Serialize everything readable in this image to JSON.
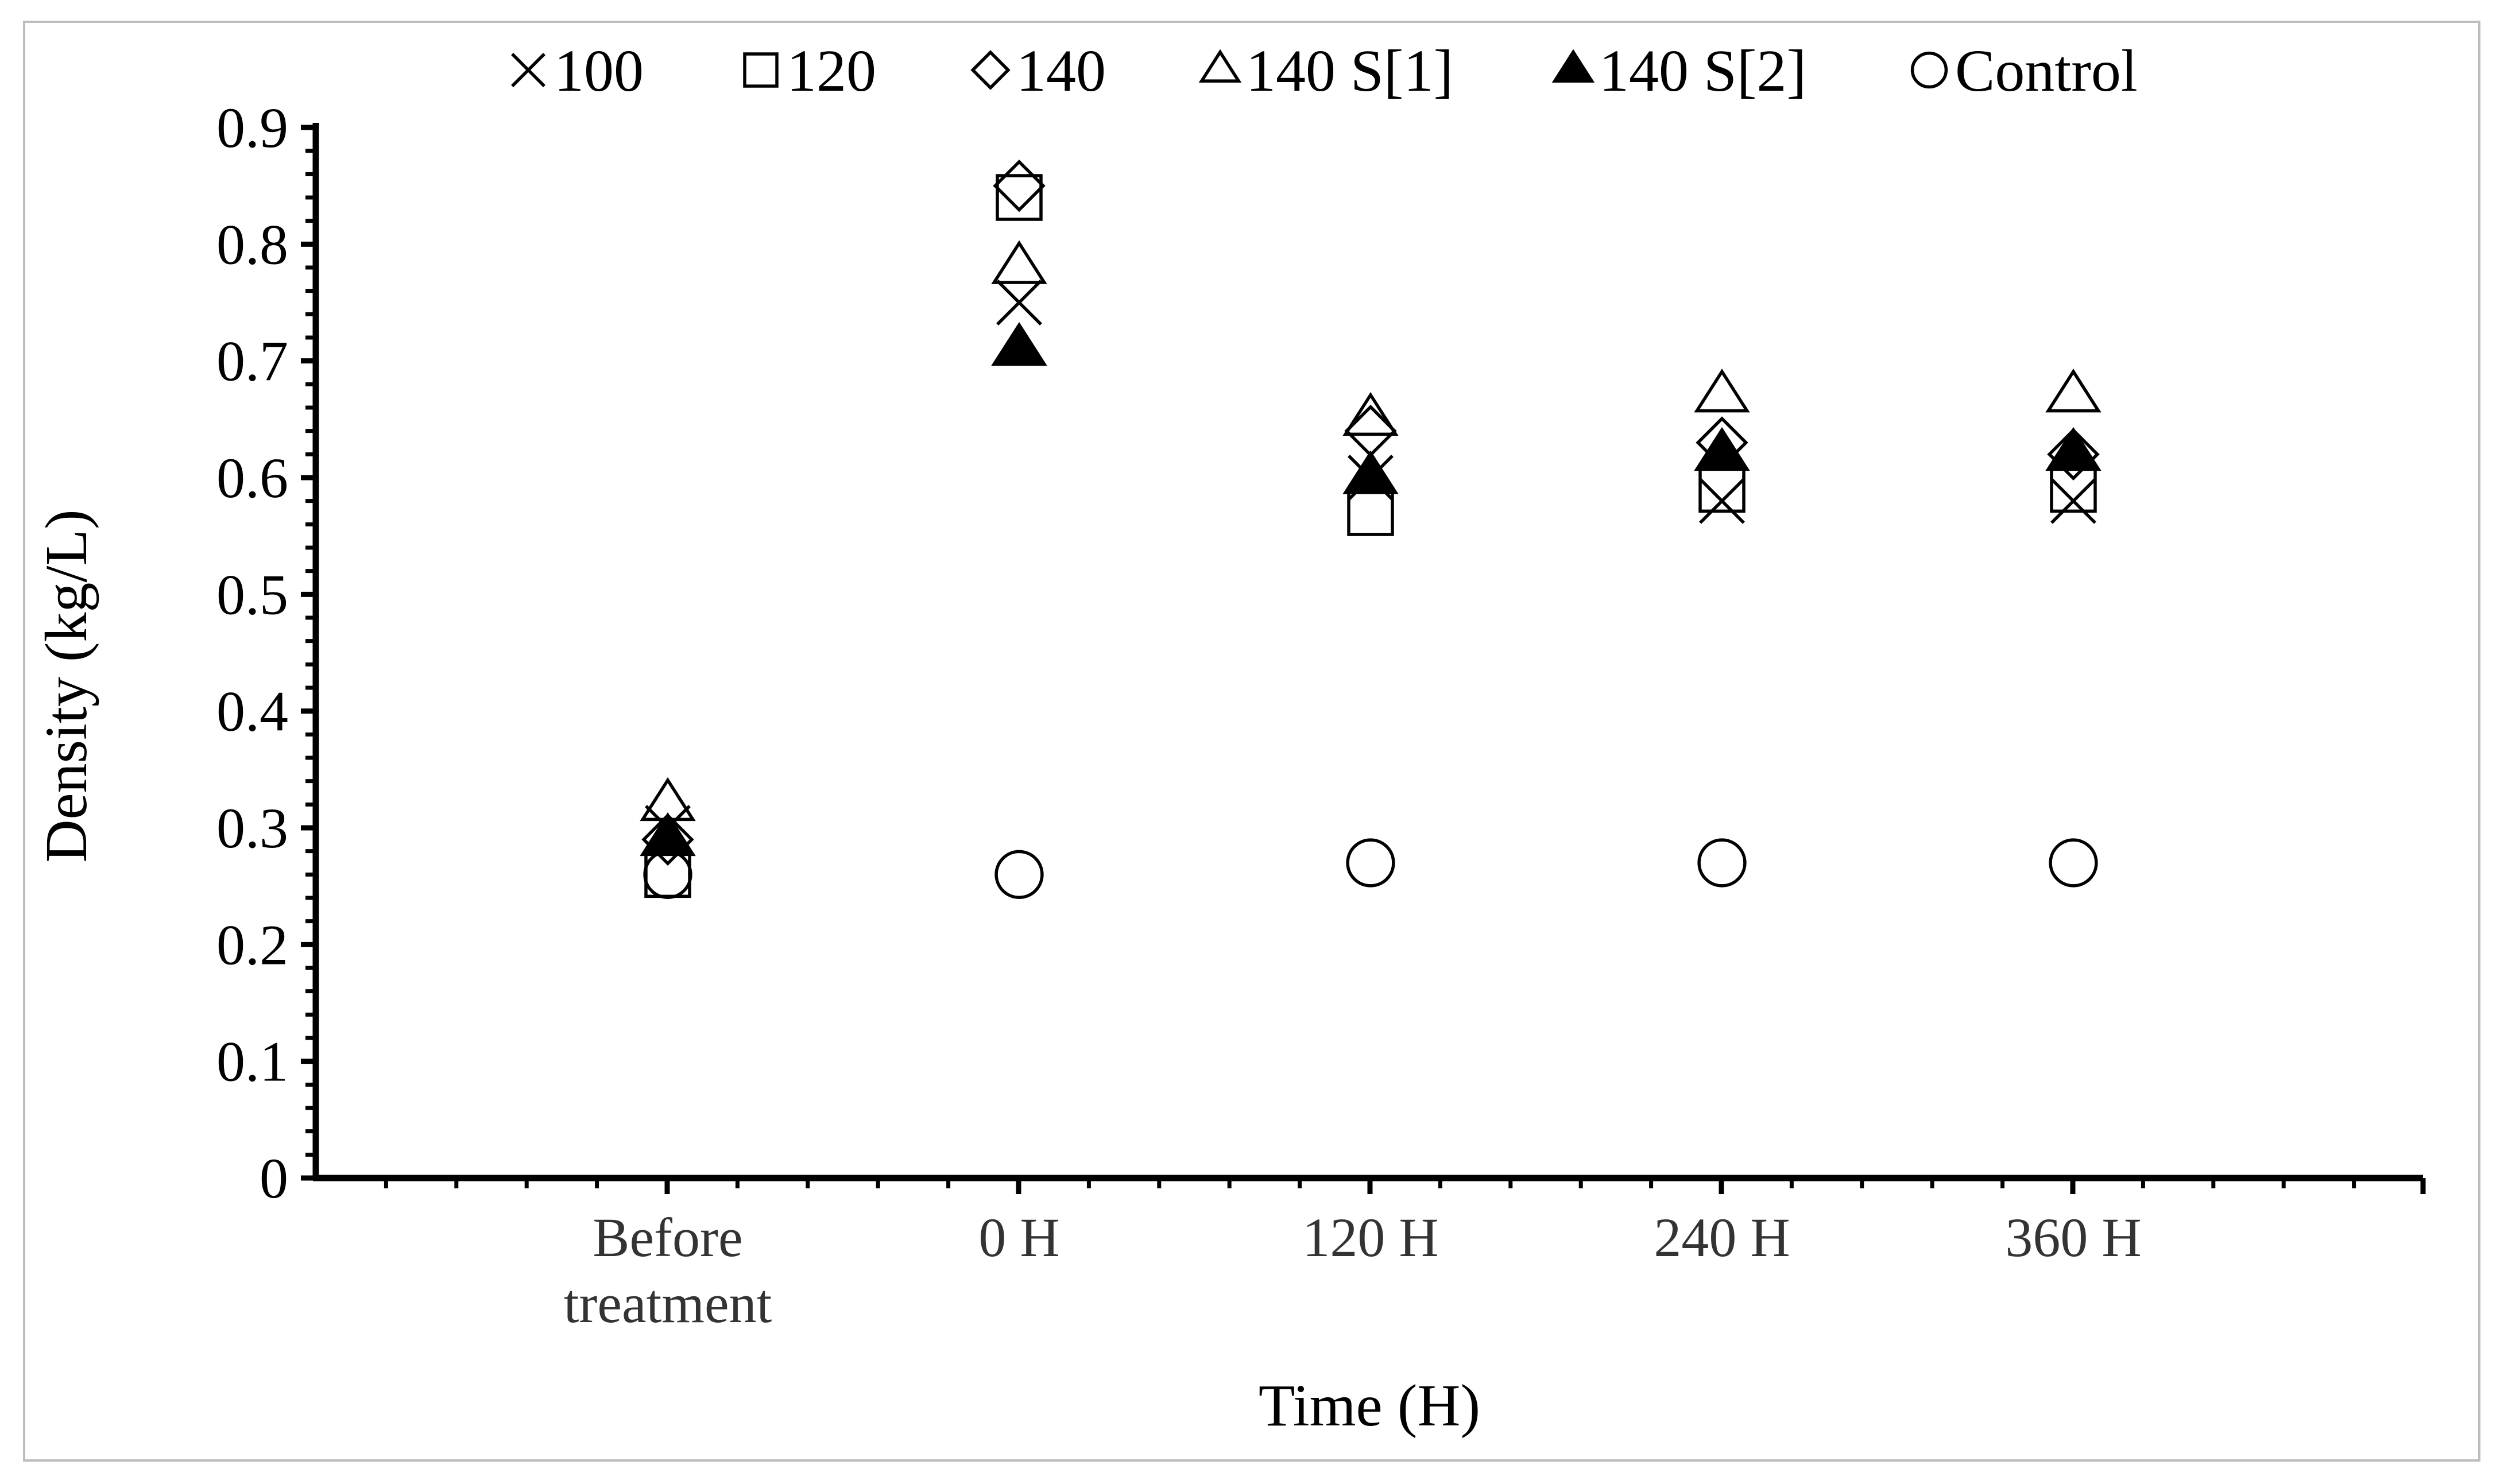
{
  "chart_data": {
    "type": "scatter",
    "title": "",
    "xlabel": "Time (H)",
    "ylabel": "Density (kg/L)",
    "ylim": [
      0,
      0.9
    ],
    "yticks": [
      "0",
      "0.1",
      "0.2",
      "0.3",
      "0.4",
      "0.5",
      "0.6",
      "0.7",
      "0.8",
      "0.9"
    ],
    "categories": [
      [
        "Before",
        "treatment"
      ],
      [
        "0 H"
      ],
      [
        "120 H"
      ],
      [
        "240 H"
      ],
      [
        "360 H"
      ]
    ],
    "legend_position": "top",
    "grid": false,
    "series": [
      {
        "name": "100",
        "marker": "x",
        "values": [
          0.3,
          0.75,
          0.6,
          0.58,
          0.58
        ]
      },
      {
        "name": "120",
        "marker": "square",
        "values": [
          0.26,
          0.84,
          0.57,
          0.59,
          0.59
        ]
      },
      {
        "name": "140",
        "marker": "diamond",
        "values": [
          0.29,
          0.85,
          0.64,
          0.63,
          0.62
        ]
      },
      {
        "name": "140 S[1]",
        "marker": "triangle-open",
        "values": [
          0.32,
          0.78,
          0.65,
          0.67,
          0.67
        ]
      },
      {
        "name": "140 S[2]",
        "marker": "triangle-filled",
        "values": [
          0.29,
          0.71,
          0.6,
          0.62,
          0.62
        ]
      },
      {
        "name": "Control",
        "marker": "circle",
        "values": [
          0.26,
          0.26,
          0.27,
          0.27,
          0.27
        ]
      }
    ],
    "colors": {
      "marker": "#000000",
      "axis": "#000000",
      "frame": "#bdbdbd"
    }
  }
}
